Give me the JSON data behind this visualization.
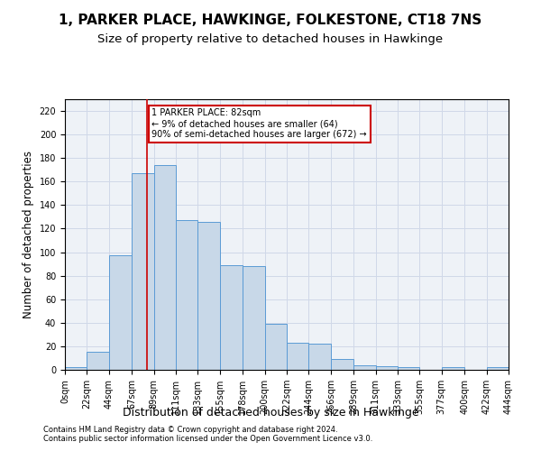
{
  "title": "1, PARKER PLACE, HAWKINGE, FOLKESTONE, CT18 7NS",
  "subtitle": "Size of property relative to detached houses in Hawkinge",
  "xlabel": "Distribution of detached houses by size in Hawkinge",
  "ylabel": "Number of detached properties",
  "bar_color": "#c8d8e8",
  "bar_edge_color": "#5b9bd5",
  "grid_color": "#d0d8e8",
  "background_color": "#eef2f7",
  "vline_x": 82,
  "vline_color": "#cc0000",
  "annotation_text": "1 PARKER PLACE: 82sqm\n← 9% of detached houses are smaller (64)\n90% of semi-detached houses are larger (672) →",
  "annotation_box_color": "#ffffff",
  "annotation_box_edge": "#cc0000",
  "footer1": "Contains HM Land Registry data © Crown copyright and database right 2024.",
  "footer2": "Contains public sector information licensed under the Open Government Licence v3.0.",
  "bin_edges": [
    0,
    22,
    44,
    67,
    89,
    111,
    133,
    155,
    178,
    200,
    222,
    244,
    266,
    289,
    311,
    333,
    355,
    377,
    400,
    422,
    444
  ],
  "bar_heights": [
    2,
    15,
    97,
    167,
    174,
    127,
    126,
    89,
    88,
    39,
    23,
    22,
    9,
    4,
    3,
    2,
    0,
    2,
    0,
    2
  ],
  "ylim": [
    0,
    230
  ],
  "yticks": [
    0,
    20,
    40,
    60,
    80,
    100,
    120,
    140,
    160,
    180,
    200,
    220
  ],
  "title_fontsize": 11,
  "subtitle_fontsize": 9.5,
  "tick_label_fontsize": 7,
  "ylabel_fontsize": 8.5,
  "xlabel_fontsize": 9
}
